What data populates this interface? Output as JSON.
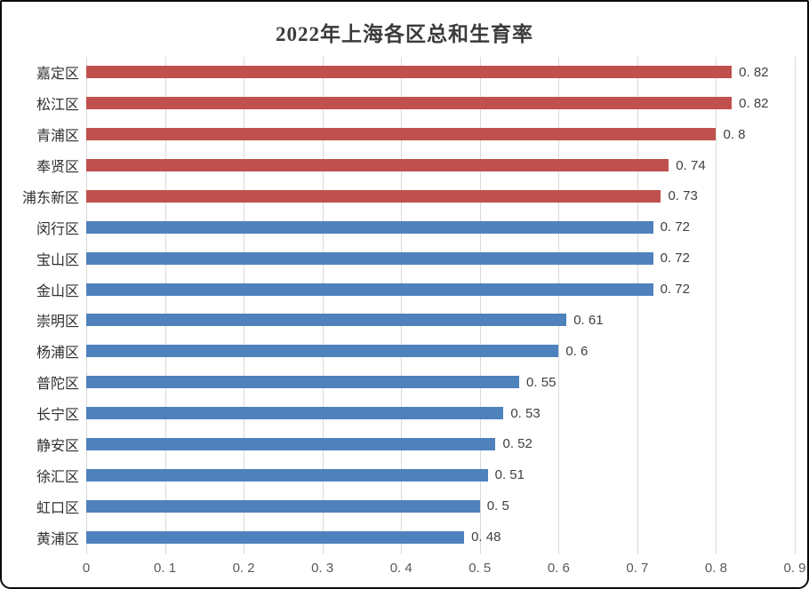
{
  "header": {
    "title": "2022年上海各区总和生育率"
  },
  "colors": {
    "bar_red": "#c0504d",
    "bar_blue": "#4f81bd",
    "gridline": "#d9d9d9",
    "title_text": "#3b3b3b",
    "category_text": "#303030",
    "value_text": "#3f3f3f",
    "axis_text": "#595959",
    "frame_border": "#0a0a0a",
    "background": "#ffffff"
  },
  "chart_data": {
    "type": "bar",
    "orientation": "horizontal",
    "title": "2022年上海各区总和生育率",
    "xlabel": "",
    "ylabel": "",
    "xlim": [
      0,
      0.9
    ],
    "grid": "vertical-only",
    "legend": "none",
    "categories": [
      "嘉定区",
      "松江区",
      "青浦区",
      "奉贤区",
      "浦东新区",
      "闵行区",
      "宝山区",
      "金山区",
      "崇明区",
      "杨浦区",
      "普陀区",
      "长宁区",
      "静安区",
      "徐汇区",
      "虹口区",
      "黄浦区"
    ],
    "values": [
      0.82,
      0.82,
      0.8,
      0.74,
      0.73,
      0.72,
      0.72,
      0.72,
      0.61,
      0.6,
      0.55,
      0.53,
      0.52,
      0.51,
      0.5,
      0.48
    ],
    "value_labels": [
      "0. 82",
      "0. 82",
      "0. 8",
      "0. 74",
      "0. 73",
      "0. 72",
      "0. 72",
      "0. 72",
      "0. 61",
      "0. 6",
      "0. 55",
      "0. 53",
      "0. 52",
      "0. 51",
      "0. 5",
      "0. 48"
    ],
    "bar_colors": [
      "#c0504d",
      "#c0504d",
      "#c0504d",
      "#c0504d",
      "#c0504d",
      "#4f81bd",
      "#4f81bd",
      "#4f81bd",
      "#4f81bd",
      "#4f81bd",
      "#4f81bd",
      "#4f81bd",
      "#4f81bd",
      "#4f81bd",
      "#4f81bd",
      "#4f81bd"
    ],
    "x_ticks": [
      0,
      0.1,
      0.2,
      0.3,
      0.4,
      0.5,
      0.6,
      0.7,
      0.8,
      0.9
    ],
    "x_tick_labels": [
      "0",
      "0. 1",
      "0. 2",
      "0. 3",
      "0. 4",
      "0. 5",
      "0. 6",
      "0. 7",
      "0. 8",
      "0. 9"
    ]
  }
}
